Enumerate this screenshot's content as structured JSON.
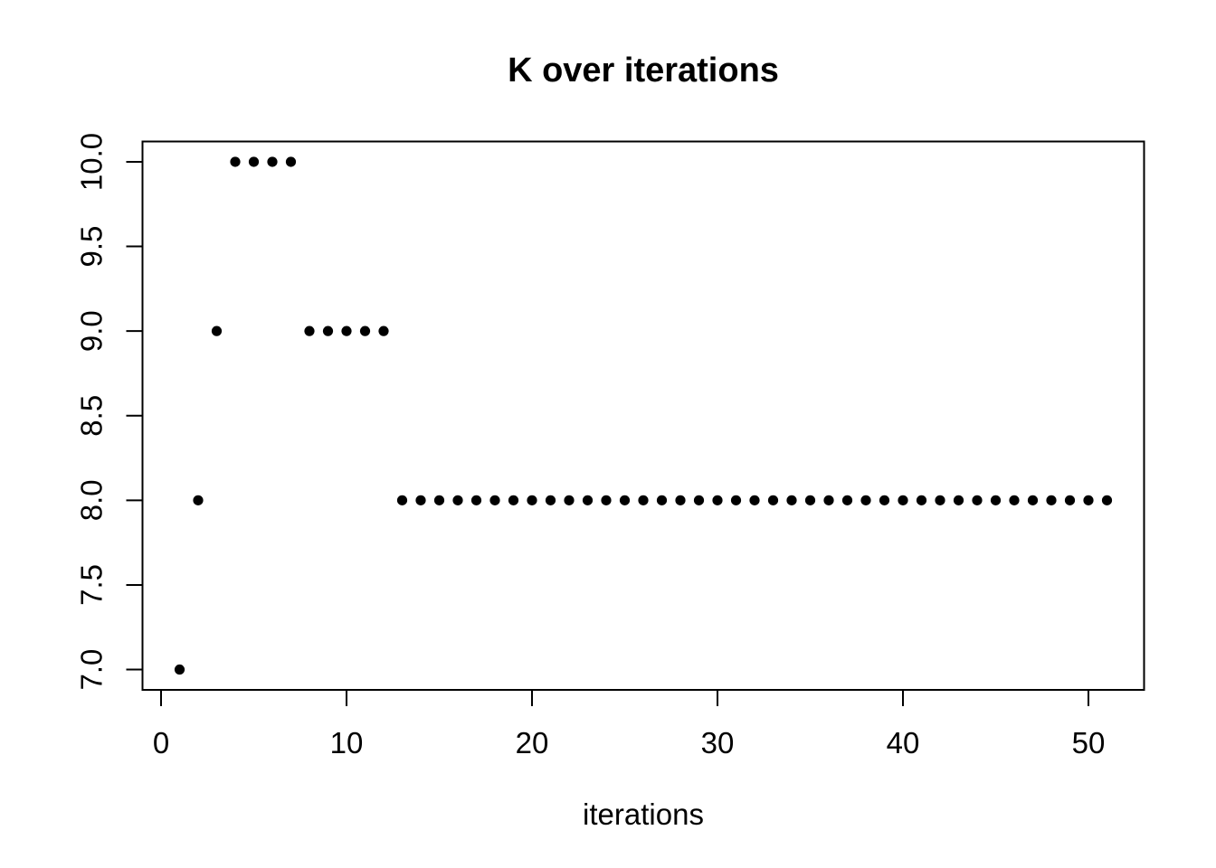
{
  "chart_data": {
    "type": "scatter",
    "title": "K over iterations",
    "xlabel": "iterations",
    "ylabel": "",
    "x": [
      1,
      2,
      3,
      4,
      5,
      6,
      7,
      8,
      9,
      10,
      11,
      12,
      13,
      14,
      15,
      16,
      17,
      18,
      19,
      20,
      21,
      22,
      23,
      24,
      25,
      26,
      27,
      28,
      29,
      30,
      31,
      32,
      33,
      34,
      35,
      36,
      37,
      38,
      39,
      40,
      41,
      42,
      43,
      44,
      45,
      46,
      47,
      48,
      49,
      50,
      51
    ],
    "values": [
      7,
      8,
      9,
      10,
      10,
      10,
      10,
      9,
      9,
      9,
      9,
      9,
      8,
      8,
      8,
      8,
      8,
      8,
      8,
      8,
      8,
      8,
      8,
      8,
      8,
      8,
      8,
      8,
      8,
      8,
      8,
      8,
      8,
      8,
      8,
      8,
      8,
      8,
      8,
      8,
      8,
      8,
      8,
      8,
      8,
      8,
      8,
      8,
      8,
      8,
      8
    ],
    "xlim": [
      -1.0,
      53.0
    ],
    "ylim": [
      6.88,
      10.12
    ],
    "x_ticks": [
      0,
      10,
      20,
      30,
      40,
      50
    ],
    "x_tick_labels": [
      "0",
      "10",
      "20",
      "30",
      "40",
      "50"
    ],
    "y_ticks": [
      7.0,
      7.5,
      8.0,
      8.5,
      9.0,
      9.5,
      10.0
    ],
    "y_tick_labels": [
      "7.0",
      "7.5",
      "8.0",
      "8.5",
      "9.0",
      "9.5",
      "10.0"
    ],
    "grid": false,
    "legend": false,
    "point_shape": "filled-circle",
    "point_color": "#000000",
    "axis_color": "#000000",
    "background_color": "#ffffff"
  }
}
